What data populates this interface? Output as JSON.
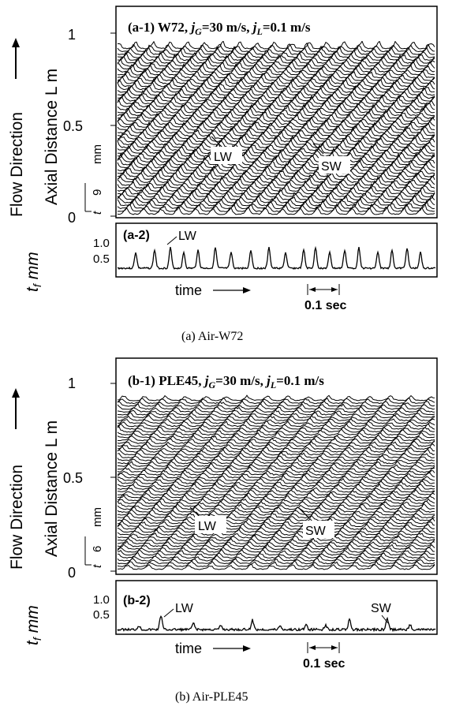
{
  "panel_a": {
    "title": "(a-1) W72, jG=30 m/s, jL=0.1 m/s",
    "title_parts": {
      "pre": "(a-1) W72, ",
      "jg": "j",
      "jg_sub": "G",
      "mid": "=30 m/s, ",
      "jl": "j",
      "jl_sub": "L",
      "post": "=0.1 m/s"
    },
    "flow_direction": "Flow Direction",
    "axial_label": "Axial Distance  L m",
    "tf_label": "t",
    "tf_sub": "f",
    "tf_unit": "mm",
    "mm_small": "mm",
    "tick_small": "9",
    "ticks_y": [
      "1",
      "0.5",
      "0"
    ],
    "annotations": [
      "LW",
      "SW"
    ],
    "sub_title": "(a-2)",
    "sub_ann": "LW",
    "sub_ticks": [
      "1.0",
      "0.5"
    ],
    "time_label": "time",
    "scale_label": "0.1 sec",
    "caption": "(a) Air-W72"
  },
  "panel_b": {
    "title_parts": {
      "pre": "(b-1) PLE45, ",
      "jg": "j",
      "jg_sub": "G",
      "mid": "=30 m/s, ",
      "jl": "j",
      "jl_sub": "L",
      "post": "=0.1 m/s"
    },
    "flow_direction": "Flow Direction",
    "axial_label": "Axial Distance  L m",
    "tf_label": "t",
    "tf_sub": "f",
    "tf_unit": "mm",
    "mm_small": "mm",
    "tick_small": "6",
    "ticks_y": [
      "1",
      "0.5",
      "0"
    ],
    "annotations": [
      "LW",
      "SW"
    ],
    "sub_title": "(b-2)",
    "sub_ann": [
      "LW",
      "SW"
    ],
    "sub_ticks": [
      "1.0",
      "0.5"
    ],
    "time_label": "time",
    "scale_label": "0.1 sec",
    "caption": "(b) Air-PLE45"
  },
  "chart_data": [
    {
      "type": "line",
      "title": "(a-1) W72, jG=30 m/s, jL=0.1 m/s",
      "ylabel": "Axial Distance L m",
      "ylim": [
        0,
        1
      ],
      "annotations": [
        "LW",
        "SW"
      ]
    },
    {
      "type": "line",
      "title": "(a-2)",
      "ylabel": "t_f mm",
      "yticks": [
        0.5,
        1.0
      ],
      "xlabel": "time",
      "scale_bar": "0.1 sec"
    },
    {
      "type": "line",
      "title": "(b-1) PLE45, jG=30 m/s, jL=0.1 m/s",
      "ylabel": "Axial Distance L m",
      "ylim": [
        0,
        1
      ],
      "annotations": [
        "LW",
        "SW"
      ]
    },
    {
      "type": "line",
      "title": "(b-2)",
      "ylabel": "t_f mm",
      "yticks": [
        0.5,
        1.0
      ],
      "xlabel": "time",
      "scale_bar": "0.1 sec"
    }
  ]
}
